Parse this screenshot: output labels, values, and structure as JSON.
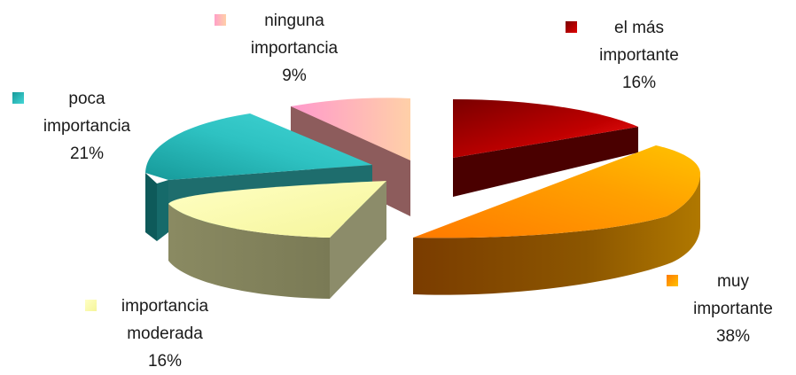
{
  "chart_data": {
    "type": "pie",
    "style": "3d-exploded",
    "slices": [
      {
        "label": "el más importante",
        "value": 16,
        "color": "#cc0000"
      },
      {
        "label": "muy importante",
        "value": 38,
        "color": "#ff9900"
      },
      {
        "label": "importancia moderada",
        "value": 16,
        "color": "#ffffbb"
      },
      {
        "label": "poca importancia",
        "value": 21,
        "color": "#33cccc"
      },
      {
        "label": "ninguna importancia",
        "value": 9,
        "color": "#ff99cc"
      }
    ],
    "data_labels": {
      "el_mas": [
        "el más",
        "importante",
        "16%"
      ],
      "muy": [
        "muy",
        "importante",
        "38%"
      ],
      "moderada": [
        "importancia",
        "moderada",
        "16%"
      ],
      "poca": [
        "poca",
        "importancia",
        "21%"
      ],
      "ninguna": [
        "ninguna",
        "importancia",
        "9%"
      ]
    }
  }
}
